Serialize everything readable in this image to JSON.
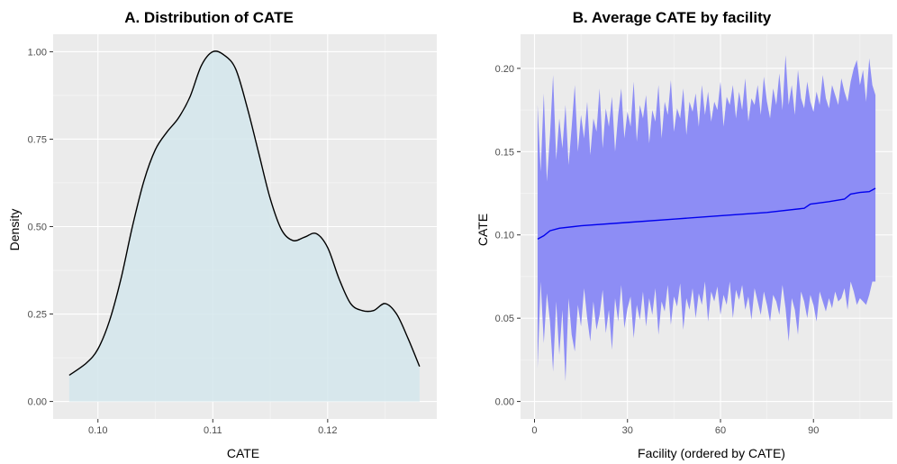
{
  "chart_data": [
    {
      "type": "area",
      "title": "A. Distribution of CATE",
      "xlabel": "CATE",
      "ylabel": "Density",
      "xlim": [
        0.0961,
        0.1295
      ],
      "ylim": [
        -0.05,
        1.05
      ],
      "x_ticks": [
        0.1,
        0.11,
        0.12
      ],
      "x_tick_labels": [
        "0.10",
        "0.11",
        "0.12"
      ],
      "y_ticks": [
        0.0,
        0.25,
        0.5,
        0.75,
        1.0
      ],
      "y_tick_labels": [
        "0.00",
        "0.25",
        "0.50",
        "0.75",
        "1.00"
      ],
      "grid": true,
      "fill_color": "#d3e6ec",
      "line_color": "#000000",
      "x": [
        0.0975,
        0.099,
        0.1,
        0.101,
        0.102,
        0.103,
        0.104,
        0.105,
        0.106,
        0.107,
        0.108,
        0.109,
        0.11,
        0.111,
        0.112,
        0.113,
        0.114,
        0.115,
        0.116,
        0.117,
        0.118,
        0.119,
        0.12,
        0.121,
        0.122,
        0.123,
        0.124,
        0.125,
        0.126,
        0.127,
        0.128
      ],
      "y": [
        0.075,
        0.11,
        0.15,
        0.23,
        0.35,
        0.5,
        0.63,
        0.72,
        0.77,
        0.81,
        0.87,
        0.96,
        1.0,
        0.99,
        0.95,
        0.84,
        0.71,
        0.58,
        0.49,
        0.46,
        0.47,
        0.48,
        0.44,
        0.35,
        0.28,
        0.26,
        0.26,
        0.28,
        0.25,
        0.18,
        0.1
      ]
    },
    {
      "type": "line",
      "title": "B. Average CATE by facility",
      "xlabel": "Facility (ordered by CATE)",
      "ylabel": "CATE",
      "xlim": [
        -4.5,
        115.5
      ],
      "ylim": [
        -0.0105,
        0.2205
      ],
      "x_ticks": [
        0,
        30,
        60,
        90
      ],
      "x_tick_labels": [
        "0",
        "30",
        "60",
        "90"
      ],
      "y_ticks": [
        0.0,
        0.05,
        0.1,
        0.15,
        0.2
      ],
      "y_tick_labels": [
        "0.00",
        "0.05",
        "0.10",
        "0.15",
        "0.20"
      ],
      "grid": true,
      "band_color": "#8d8df5",
      "line_color": "#0000ee",
      "x_range": [
        1,
        110
      ],
      "line": [
        [
          1,
          0.0975
        ],
        [
          3,
          0.0995
        ],
        [
          5,
          0.1025
        ],
        [
          8,
          0.104
        ],
        [
          15,
          0.1055
        ],
        [
          30,
          0.1075
        ],
        [
          45,
          0.1095
        ],
        [
          60,
          0.1115
        ],
        [
          75,
          0.1135
        ],
        [
          87,
          0.116
        ],
        [
          89,
          0.1185
        ],
        [
          95,
          0.12
        ],
        [
          100,
          0.1215
        ],
        [
          102,
          0.1245
        ],
        [
          105,
          0.1255
        ],
        [
          108,
          0.126
        ],
        [
          110,
          0.128
        ]
      ],
      "upper": [
        0.178,
        0.138,
        0.185,
        0.132,
        0.16,
        0.196,
        0.145,
        0.17,
        0.152,
        0.178,
        0.142,
        0.165,
        0.19,
        0.15,
        0.172,
        0.158,
        0.18,
        0.148,
        0.17,
        0.162,
        0.188,
        0.152,
        0.176,
        0.165,
        0.183,
        0.15,
        0.172,
        0.188,
        0.158,
        0.174,
        0.165,
        0.192,
        0.156,
        0.178,
        0.17,
        0.184,
        0.155,
        0.175,
        0.168,
        0.19,
        0.158,
        0.18,
        0.172,
        0.193,
        0.162,
        0.176,
        0.17,
        0.188,
        0.16,
        0.18,
        0.174,
        0.185,
        0.165,
        0.19,
        0.172,
        0.186,
        0.168,
        0.18,
        0.175,
        0.192,
        0.165,
        0.183,
        0.178,
        0.19,
        0.17,
        0.186,
        0.175,
        0.194,
        0.168,
        0.182,
        0.178,
        0.19,
        0.172,
        0.195,
        0.18,
        0.17,
        0.188,
        0.178,
        0.197,
        0.175,
        0.208,
        0.178,
        0.19,
        0.172,
        0.199,
        0.182,
        0.176,
        0.192,
        0.18,
        0.174,
        0.186,
        0.178,
        0.196,
        0.182,
        0.176,
        0.19,
        0.184,
        0.178,
        0.194,
        0.186,
        0.18,
        0.192,
        0.2,
        0.205,
        0.19,
        0.199,
        0.18,
        0.206,
        0.19,
        0.184
      ],
      "lower": [
        0.02,
        0.072,
        0.035,
        0.065,
        0.048,
        0.018,
        0.06,
        0.028,
        0.055,
        0.012,
        0.062,
        0.04,
        0.03,
        0.058,
        0.045,
        0.068,
        0.05,
        0.036,
        0.06,
        0.043,
        0.052,
        0.067,
        0.041,
        0.055,
        0.031,
        0.062,
        0.048,
        0.07,
        0.044,
        0.056,
        0.063,
        0.038,
        0.058,
        0.049,
        0.066,
        0.045,
        0.062,
        0.052,
        0.068,
        0.04,
        0.06,
        0.054,
        0.07,
        0.046,
        0.063,
        0.057,
        0.071,
        0.043,
        0.062,
        0.055,
        0.068,
        0.05,
        0.065,
        0.058,
        0.072,
        0.048,
        0.066,
        0.06,
        0.069,
        0.052,
        0.064,
        0.058,
        0.072,
        0.05,
        0.067,
        0.061,
        0.07,
        0.055,
        0.063,
        0.049,
        0.068,
        0.06,
        0.052,
        0.066,
        0.058,
        0.048,
        0.064,
        0.06,
        0.052,
        0.07,
        0.056,
        0.036,
        0.062,
        0.055,
        0.04,
        0.066,
        0.06,
        0.05,
        0.064,
        0.058,
        0.048,
        0.066,
        0.06,
        0.054,
        0.062,
        0.056,
        0.066,
        0.06,
        0.062,
        0.068,
        0.055,
        0.072,
        0.066,
        0.058,
        0.062,
        0.06,
        0.058,
        0.064,
        0.072,
        0.072
      ]
    }
  ]
}
